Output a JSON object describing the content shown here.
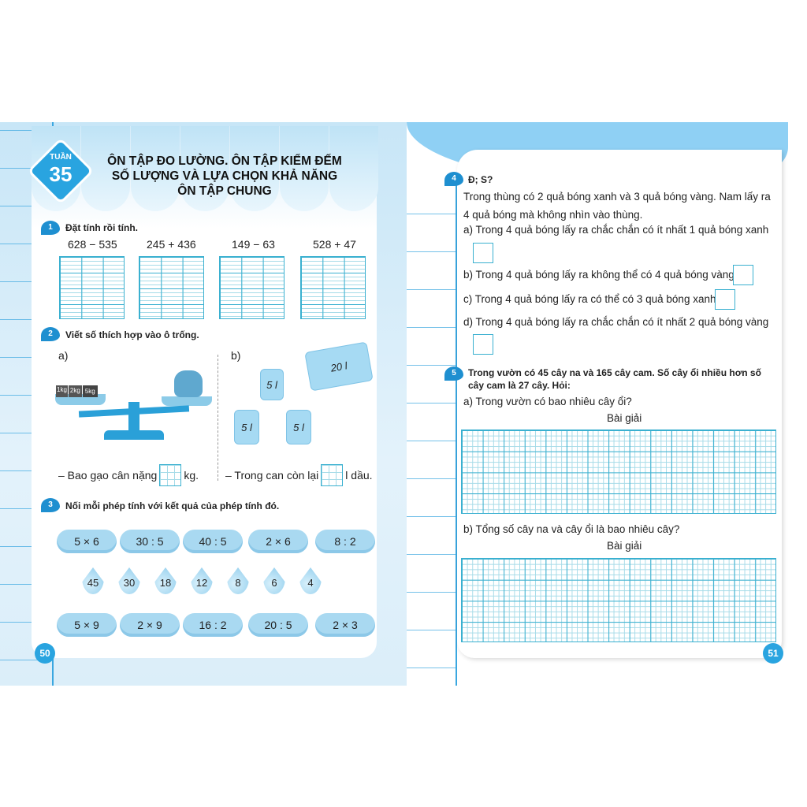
{
  "left_page": {
    "week_label": "TUẦN",
    "week_number": "35",
    "title_lines": [
      "ÔN TẬP ĐO LƯỜNG. ÔN TẬP KIỂM ĐẾM",
      "SỐ LƯỢNG VÀ LỰA CHỌN KHẢ NĂNG",
      "ÔN TẬP CHUNG"
    ],
    "ex1": {
      "num": "1",
      "heading": "Đặt tính rồi tính.",
      "problems": [
        "628 − 535",
        "245 + 436",
        "149 − 63",
        "528 + 47"
      ]
    },
    "ex2": {
      "num": "2",
      "heading": "Viết số thích hợp vào ô trống.",
      "a": {
        "label": "a)",
        "weights": [
          "1kg",
          "2kg",
          "5kg"
        ],
        "sentence_before": "– Bao gạo cân nặng",
        "sentence_after": "kg."
      },
      "b": {
        "label": "b)",
        "big_can": "20 l",
        "small_cans": [
          "5 l",
          "5 l",
          "5 l"
        ],
        "sentence_before": "– Trong can còn lại",
        "sentence_after": "l dầu."
      }
    },
    "ex3": {
      "num": "3",
      "heading": "Nối mỗi phép tính với kết quả của phép tính đó.",
      "top_clouds": [
        "5 × 6",
        "30 : 5",
        "40 : 5",
        "2 × 6",
        "8 : 2"
      ],
      "drops": [
        "45",
        "30",
        "18",
        "12",
        "8",
        "6",
        "4"
      ],
      "bottom_clouds": [
        "5 × 9",
        "2 × 9",
        "16 : 2",
        "20 : 5",
        "2 × 3"
      ]
    },
    "page_number": "50"
  },
  "right_page": {
    "ex4": {
      "num": "4",
      "heading": "Đ; S?",
      "intro": [
        "Trong thùng có 2 quả bóng xanh và 3 quả bóng vàng. Nam lấy ra",
        "4 quả bóng mà không nhìn vào thùng."
      ],
      "items": [
        "a) Trong 4 quả bóng lấy ra chắc chắn có ít nhất 1 quả bóng xanh",
        "b) Trong 4 quả bóng lấy ra không thể có 4 quả bóng vàng",
        "c) Trong 4 quả bóng lấy ra có thể có 3 quả bóng xanh",
        "d) Trong 4 quả bóng lấy ra chắc chắn có ít nhất 2 quả bóng vàng"
      ]
    },
    "ex5": {
      "num": "5",
      "heading_lines": [
        "Trong vườn có 45 cây na và 165 cây cam. Số cây ổi nhiều hơn số",
        "cây cam là 27 cây. Hỏi:"
      ],
      "a": "a) Trong vườn có bao nhiêu cây ổi?",
      "b": "b) Tổng số cây na và cây ổi là bao nhiêu cây?",
      "solution_label": "Bài giải"
    },
    "page_number": "51"
  },
  "colors": {
    "accent": "#29a4e0",
    "grid": "#3ab0d0",
    "page_bg": "#c8e6f7"
  }
}
